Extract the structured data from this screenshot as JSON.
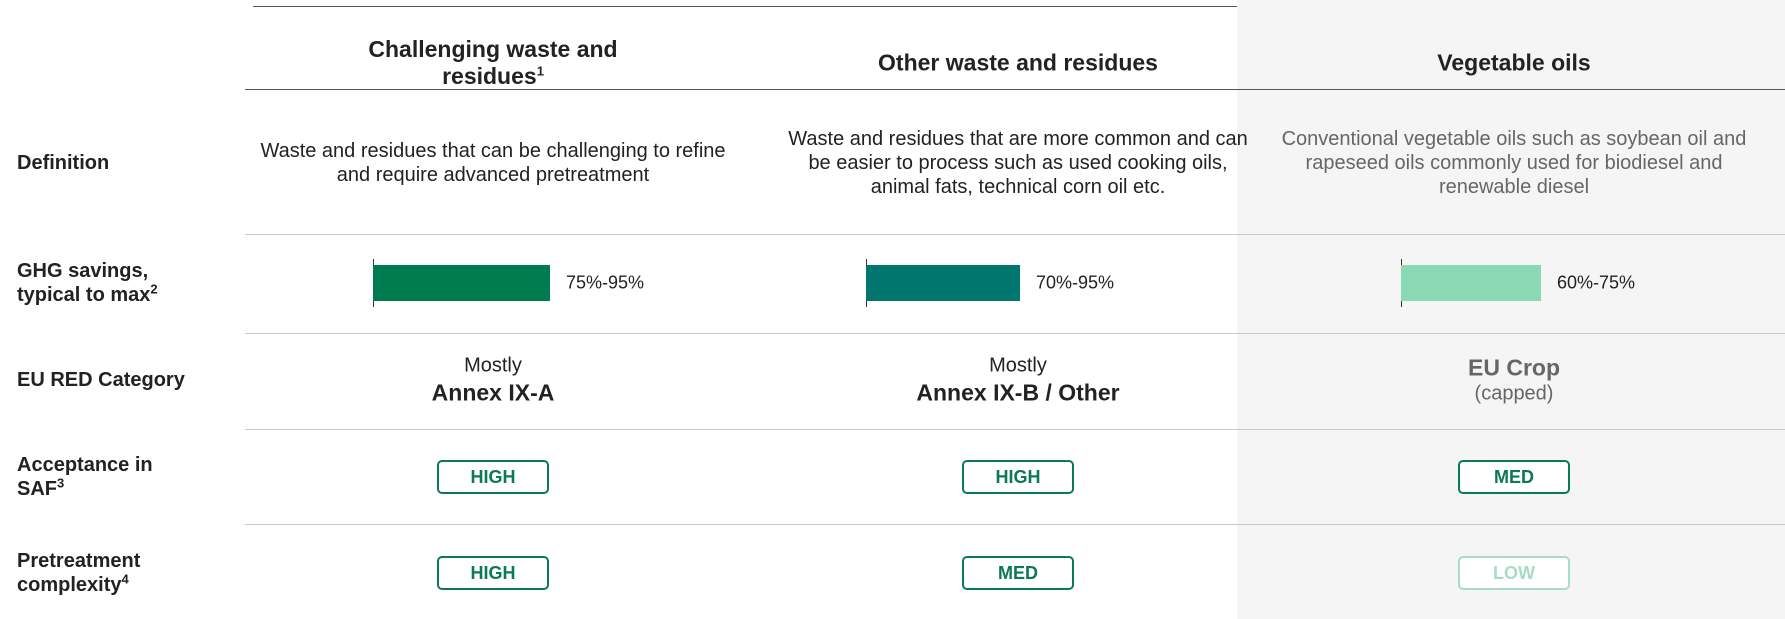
{
  "rows": [
    {
      "label": "Definition"
    },
    {
      "label": "GHG savings, typical to max",
      "sup": "2"
    },
    {
      "label": "EU RED Category"
    },
    {
      "label": "Acceptance in SAF",
      "sup": "3"
    },
    {
      "label": "Pretreatment complexity",
      "sup": "4"
    }
  ],
  "columns": [
    {
      "title": "Challenging waste and residues",
      "title_sup": "1",
      "definition": "Waste and residues that can be challenging to refine and require advanced pretreatment",
      "ghg": "75%-95%",
      "bar_color": "#007a4f",
      "eu_red_above": "Mostly",
      "eu_red_main": "Annex IX-A",
      "acceptance": "HIGH",
      "complexity": "HIGH"
    },
    {
      "title": "Other waste and residues",
      "definition": "Waste and residues that are more common and can be easier to process such as used cooking oils, animal fats, technical corn oil etc.",
      "ghg": "70%-95%",
      "bar_color": "#00766e",
      "eu_red_above": "Mostly",
      "eu_red_main": "Annex IX-B / Other",
      "acceptance": "HIGH",
      "complexity": "MED"
    },
    {
      "title": "Vegetable oils",
      "definition": "Conventional vegetable oils such as soybean oil and rapeseed oils commonly used for biodiesel and renewable diesel",
      "ghg": "60%-75%",
      "bar_color": "#8ad8b4",
      "eu_red_main": "EU Crop",
      "eu_red_below": "(capped)",
      "acceptance": "MED",
      "complexity": "LOW"
    }
  ]
}
